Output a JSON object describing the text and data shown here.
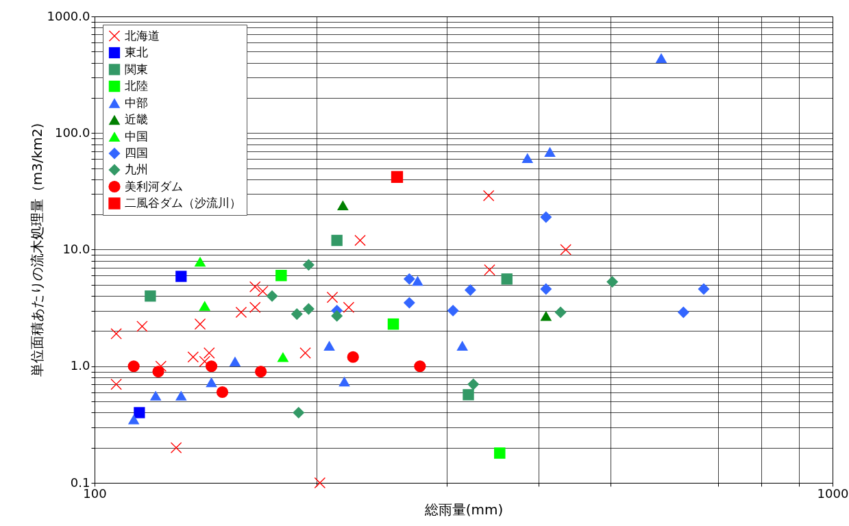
{
  "chart_data": {
    "type": "scatter",
    "xlabel": "総雨量(mm)",
    "ylabel": "単位面積あたりの流木処理量（m3/km2)",
    "log": "xy",
    "grid": true,
    "legend": "top left",
    "xlim": [
      100,
      1000
    ],
    "xticks": [
      100,
      {
        "value": 200,
        "label": null
      },
      {
        "value": 300,
        "label": null
      },
      {
        "value": 400,
        "label": null
      },
      {
        "value": 500,
        "label": null
      },
      {
        "value": 700,
        "label": null
      },
      {
        "value": 800,
        "label": null
      },
      {
        "value": 900,
        "label": null
      },
      1000
    ],
    "ylim": [
      0.1,
      1000
    ],
    "yticks": [
      0.1,
      {
        "value": 0.2,
        "label": null
      },
      {
        "value": 0.3,
        "label": null
      },
      {
        "value": 0.4,
        "label": null
      },
      {
        "value": 0.5,
        "label": null
      },
      {
        "value": 0.6,
        "label": null
      },
      {
        "value": 0.7,
        "label": null
      },
      {
        "value": 0.8,
        "label": null
      },
      {
        "value": 0.9,
        "label": null
      },
      {
        "value": 1,
        "label": "1.0"
      },
      {
        "value": 2,
        "label": null
      },
      {
        "value": 3,
        "label": null
      },
      {
        "value": 4,
        "label": null
      },
      {
        "value": 5,
        "label": null
      },
      {
        "value": 6,
        "label": null
      },
      {
        "value": 7,
        "label": null
      },
      {
        "value": 8,
        "label": null
      },
      {
        "value": 9,
        "label": null
      },
      {
        "value": 10,
        "label": "10.0"
      },
      {
        "value": 20,
        "label": null
      },
      {
        "value": 30,
        "label": null
      },
      {
        "value": 40,
        "label": null
      },
      {
        "value": 50,
        "label": null
      },
      {
        "value": 60,
        "label": null
      },
      {
        "value": 70,
        "label": null
      },
      {
        "value": 80,
        "label": null
      },
      {
        "value": 90,
        "label": null
      },
      {
        "value": 100,
        "label": "100.0"
      },
      {
        "value": 200,
        "label": null
      },
      {
        "value": 300,
        "label": null
      },
      {
        "value": 400,
        "label": null
      },
      {
        "value": 500,
        "label": null
      },
      {
        "value": 600,
        "label": null
      },
      {
        "value": 700,
        "label": null
      },
      {
        "value": 800,
        "label": null
      },
      {
        "value": 900,
        "label": null
      },
      {
        "value": 1000,
        "label": "1000.0"
      }
    ],
    "series": [
      {
        "name": "北海道",
        "color": "#ff0000",
        "marker": "cross",
        "x": [
          107,
          107,
          116,
          123,
          129,
          136,
          139,
          141,
          143,
          158,
          165,
          165,
          169,
          193,
          202,
          210,
          221,
          229,
          342,
          343,
          435
        ],
        "values": [
          1.9,
          0.7,
          2.2,
          1.0,
          0.2,
          1.2,
          2.3,
          1.1,
          1.3,
          2.9,
          4.8,
          3.2,
          4.4,
          1.3,
          0.1,
          3.9,
          3.2,
          12,
          29,
          6.7,
          10
        ]
      },
      {
        "name": "東北",
        "color": "#0000ff",
        "marker": "square",
        "x": [
          131,
          115
        ],
        "values": [
          5.9,
          0.4
        ]
      },
      {
        "name": "関東",
        "color": "#339966",
        "marker": "square",
        "x": [
          119,
          213,
          362,
          321
        ],
        "values": [
          4.0,
          12,
          5.6,
          0.57
        ]
      },
      {
        "name": "北陸",
        "color": "#00ff00",
        "marker": "square",
        "x": [
          179,
          254,
          354
        ],
        "values": [
          6.0,
          2.3,
          0.18
        ]
      },
      {
        "name": "中部",
        "color": "#3366ff",
        "marker": "triangle",
        "x": [
          113,
          121,
          131,
          144,
          155,
          208,
          218,
          274,
          315,
          386,
          414,
          586
        ],
        "values": [
          0.35,
          0.56,
          0.56,
          0.73,
          1.1,
          1.5,
          0.74,
          5.4,
          1.5,
          61,
          69,
          440
        ]
      },
      {
        "name": "近畿",
        "color": "#008000",
        "marker": "triangle",
        "x": [
          217,
          409
        ],
        "values": [
          24,
          2.7
        ]
      },
      {
        "name": "中国",
        "color": "#00ff00",
        "marker": "triangle",
        "x": [
          139,
          141,
          180
        ],
        "values": [
          7.9,
          3.3,
          1.2
        ]
      },
      {
        "name": "四国",
        "color": "#3366ff",
        "marker": "diamond",
        "x": [
          213,
          267,
          267,
          306,
          323,
          409,
          409,
          628,
          669
        ],
        "values": [
          3.0,
          5.6,
          3.5,
          3.0,
          4.5,
          19,
          4.6,
          2.9,
          4.6
        ]
      },
      {
        "name": "九州",
        "color": "#339966",
        "marker": "diamond",
        "x": [
          174,
          188,
          195,
          195,
          189,
          213,
          326,
          428,
          503
        ],
        "values": [
          4.0,
          2.8,
          3.1,
          7.4,
          0.4,
          2.7,
          0.7,
          2.9,
          5.3
        ]
      },
      {
        "name": "美利河ダム",
        "color": "#ff0000",
        "marker": "circle",
        "x": [
          113,
          122,
          144,
          149,
          168,
          224,
          276
        ],
        "values": [
          1.0,
          0.9,
          1.0,
          0.6,
          0.9,
          1.2,
          1.0
        ]
      },
      {
        "name": "二風谷ダム（沙流川）",
        "color": "#ff0000",
        "marker": "square",
        "x": [
          257
        ],
        "values": [
          42
        ]
      }
    ]
  }
}
